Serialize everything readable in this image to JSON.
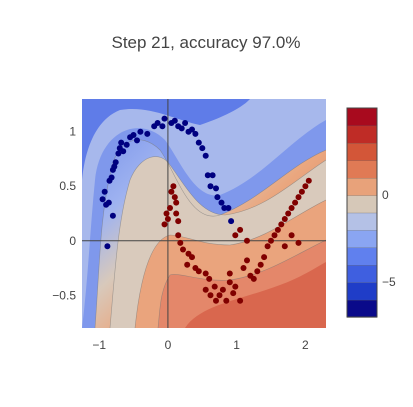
{
  "chart_data": {
    "type": "scatter",
    "title": "Step 21, accuracy 97.0%",
    "xlabel": "",
    "ylabel": "",
    "xlim": [
      -1.25,
      2.3
    ],
    "ylim": [
      -0.8,
      1.3
    ],
    "x_ticks": [
      -1,
      0,
      1,
      2
    ],
    "x_tick_labels": [
      "−1",
      "0",
      "1",
      "2"
    ],
    "y_ticks": [
      -0.5,
      0,
      0.5,
      1
    ],
    "y_tick_labels": [
      "−0.5",
      "0",
      "0.5",
      "1"
    ],
    "grid": false,
    "zero_lines": true,
    "background": "decision function contour (filled)",
    "colorbar": {
      "colorscale": [
        "#0a0a8a",
        "#1f3dc8",
        "#3f5fe0",
        "#6080ee",
        "#8aa5f2",
        "#b4c1e6",
        "#d6c8b8",
        "#e8a27a",
        "#e07a55",
        "#d35638",
        "#bf2c26",
        "#a80a1e"
      ],
      "range": [
        -7,
        5
      ],
      "tick_values": [
        0,
        -5
      ],
      "tick_labels": [
        "0",
        "−5"
      ]
    },
    "series": [
      {
        "color": "#000080",
        "points": [
          [
            -0.95,
            0.38
          ],
          [
            -0.92,
            0.45
          ],
          [
            -0.9,
            0.33
          ],
          [
            -0.88,
            -0.05
          ],
          [
            -0.86,
            0.35
          ],
          [
            -0.85,
            0.55
          ],
          [
            -0.82,
            0.58
          ],
          [
            -0.8,
            0.65
          ],
          [
            -0.8,
            0.23
          ],
          [
            -0.78,
            0.68
          ],
          [
            -0.76,
            0.72
          ],
          [
            -0.72,
            0.8
          ],
          [
            -0.7,
            0.85
          ],
          [
            -0.68,
            0.9
          ],
          [
            -0.65,
            0.82
          ],
          [
            -0.6,
            0.88
          ],
          [
            -0.55,
            0.95
          ],
          [
            -0.5,
            0.97
          ],
          [
            -0.45,
            0.92
          ],
          [
            -0.4,
            1.0
          ],
          [
            -0.3,
            0.98
          ],
          [
            -0.2,
            1.05
          ],
          [
            -0.15,
            1.08
          ],
          [
            -0.05,
            1.12
          ],
          [
            0.1,
            1.1
          ],
          [
            0.15,
            1.05
          ],
          [
            0.2,
            1.03
          ],
          [
            0.25,
            1.08
          ],
          [
            0.3,
            1.0
          ],
          [
            0.35,
            1.02
          ],
          [
            0.4,
            0.98
          ],
          [
            0.45,
            0.9
          ],
          [
            0.5,
            0.85
          ],
          [
            0.55,
            0.78
          ],
          [
            0.58,
            0.6
          ],
          [
            0.62,
            0.5
          ],
          [
            0.65,
            0.6
          ],
          [
            0.7,
            0.48
          ],
          [
            0.72,
            0.4
          ],
          [
            0.78,
            0.35
          ],
          [
            0.82,
            0.3
          ],
          [
            0.88,
            0.3
          ],
          [
            0.92,
            0.18
          ],
          [
            -0.08,
            1.05
          ],
          [
            0.05,
            1.08
          ]
        ]
      },
      {
        "color": "#800000",
        "points": [
          [
            -0.05,
            0.15
          ],
          [
            -0.02,
            0.25
          ],
          [
            0.0,
            0.2
          ],
          [
            0.03,
            0.3
          ],
          [
            0.05,
            0.45
          ],
          [
            0.08,
            0.5
          ],
          [
            0.1,
            0.4
          ],
          [
            0.12,
            0.35
          ],
          [
            0.12,
            0.25
          ],
          [
            0.15,
            0.18
          ],
          [
            0.15,
            0.05
          ],
          [
            0.18,
            -0.02
          ],
          [
            0.22,
            -0.08
          ],
          [
            0.28,
            -0.22
          ],
          [
            0.3,
            -0.12
          ],
          [
            0.35,
            -0.15
          ],
          [
            0.4,
            -0.25
          ],
          [
            0.45,
            -0.28
          ],
          [
            0.55,
            -0.3
          ],
          [
            0.55,
            -0.45
          ],
          [
            0.62,
            -0.5
          ],
          [
            0.68,
            -0.42
          ],
          [
            0.75,
            -0.5
          ],
          [
            0.8,
            -0.45
          ],
          [
            0.85,
            -0.55
          ],
          [
            0.9,
            -0.38
          ],
          [
            0.95,
            -0.48
          ],
          [
            0.98,
            -0.42
          ],
          [
            1.05,
            -0.55
          ],
          [
            1.1,
            -0.25
          ],
          [
            1.15,
            -0.18
          ],
          [
            1.2,
            -0.32
          ],
          [
            1.25,
            -0.35
          ],
          [
            1.3,
            -0.28
          ],
          [
            1.35,
            -0.22
          ],
          [
            1.4,
            -0.15
          ],
          [
            1.45,
            -0.05
          ],
          [
            1.5,
            0.0
          ],
          [
            1.55,
            0.05
          ],
          [
            1.6,
            0.1
          ],
          [
            1.65,
            0.15
          ],
          [
            1.7,
            0.2
          ],
          [
            1.75,
            0.25
          ],
          [
            1.8,
            0.3
          ],
          [
            1.85,
            0.35
          ],
          [
            1.9,
            0.4
          ],
          [
            1.95,
            0.45
          ],
          [
            2.0,
            0.5
          ],
          [
            2.05,
            0.55
          ],
          [
            1.7,
            -0.05
          ],
          [
            1.8,
            0.05
          ],
          [
            1.9,
            -0.02
          ],
          [
            0.98,
            0.05
          ],
          [
            1.05,
            0.1
          ],
          [
            1.15,
            0.0
          ],
          [
            0.9,
            -0.3
          ],
          [
            0.7,
            -0.55
          ],
          [
            0.6,
            -0.35
          ]
        ]
      }
    ]
  }
}
